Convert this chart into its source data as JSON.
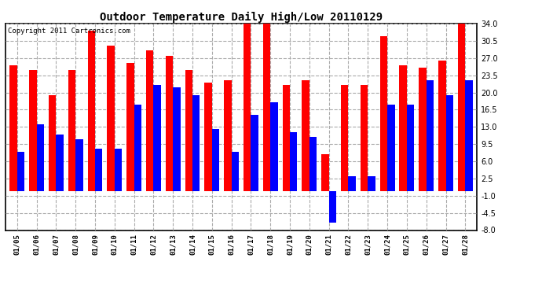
{
  "title": "Outdoor Temperature Daily High/Low 20110129",
  "copyright": "Copyright 2011 Cartronics.com",
  "dates": [
    "01/05",
    "01/06",
    "01/07",
    "01/08",
    "01/09",
    "01/10",
    "01/11",
    "01/12",
    "01/13",
    "01/14",
    "01/15",
    "01/16",
    "01/17",
    "01/18",
    "01/19",
    "01/20",
    "01/21",
    "01/22",
    "01/23",
    "01/24",
    "01/25",
    "01/26",
    "01/27",
    "01/28"
  ],
  "highs": [
    25.5,
    24.5,
    19.5,
    24.5,
    32.5,
    29.5,
    26.0,
    28.5,
    27.5,
    24.5,
    22.0,
    22.5,
    34.0,
    34.0,
    21.5,
    22.5,
    7.5,
    21.5,
    21.5,
    31.5,
    25.5,
    25.0,
    26.5,
    34.0
  ],
  "lows": [
    8.0,
    13.5,
    11.5,
    10.5,
    8.5,
    8.5,
    17.5,
    21.5,
    21.0,
    19.5,
    12.5,
    8.0,
    15.5,
    18.0,
    12.0,
    11.0,
    -6.5,
    3.0,
    3.0,
    17.5,
    17.5,
    22.5,
    19.5,
    22.5
  ],
  "high_color": "#ff0000",
  "low_color": "#0000ff",
  "bg_color": "#ffffff",
  "grid_color": "#aaaaaa",
  "yticks": [
    -8.0,
    -4.5,
    -1.0,
    2.5,
    6.0,
    9.5,
    13.0,
    16.5,
    20.0,
    23.5,
    27.0,
    30.5,
    34.0
  ],
  "ymin": -8.0,
  "ymax": 34.0,
  "figwidth": 6.9,
  "figheight": 3.75,
  "dpi": 100
}
